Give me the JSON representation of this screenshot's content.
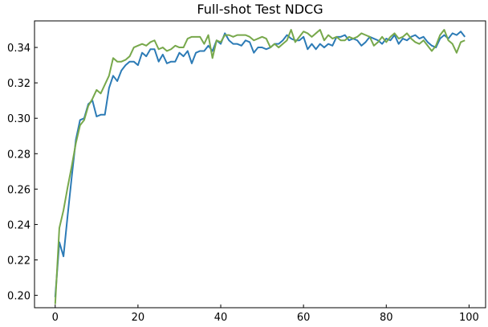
{
  "chart_data": {
    "type": "line",
    "title": "Full-shot Test NDCG",
    "xlabel": "",
    "ylabel": "",
    "xlim": [
      -5,
      104
    ],
    "ylim": [
      0.193,
      0.355
    ],
    "xticks": [
      0,
      20,
      40,
      60,
      80,
      100
    ],
    "yticks": [
      0.2,
      0.22,
      0.24,
      0.26,
      0.28,
      0.3,
      0.32,
      0.34
    ],
    "ytick_labels": [
      "0.20",
      "0.22",
      "0.24",
      "0.26",
      "0.28",
      "0.30",
      "0.32",
      "0.34"
    ],
    "grid": false,
    "x": [
      0,
      1,
      2,
      3,
      4,
      5,
      6,
      7,
      8,
      9,
      10,
      11,
      12,
      13,
      14,
      15,
      16,
      17,
      18,
      19,
      20,
      21,
      22,
      23,
      24,
      25,
      26,
      27,
      28,
      29,
      30,
      31,
      32,
      33,
      34,
      35,
      36,
      37,
      38,
      39,
      40,
      41,
      42,
      43,
      44,
      45,
      46,
      47,
      48,
      49,
      50,
      51,
      52,
      53,
      54,
      55,
      56,
      57,
      58,
      59,
      60,
      61,
      62,
      63,
      64,
      65,
      66,
      67,
      68,
      69,
      70,
      71,
      72,
      73,
      74,
      75,
      76,
      77,
      78,
      79,
      80,
      81,
      82,
      83,
      84,
      85,
      86,
      87,
      88,
      89,
      90,
      91,
      92,
      93,
      94,
      95,
      96,
      97,
      98,
      99
    ],
    "series": [
      {
        "color": "#2c7bb6",
        "values": [
          0.199,
          0.23,
          0.222,
          0.245,
          0.267,
          0.288,
          0.299,
          0.3,
          0.308,
          0.31,
          0.301,
          0.302,
          0.302,
          0.317,
          0.324,
          0.321,
          0.327,
          0.33,
          0.332,
          0.332,
          0.33,
          0.337,
          0.335,
          0.339,
          0.339,
          0.332,
          0.336,
          0.331,
          0.332,
          0.332,
          0.337,
          0.335,
          0.338,
          0.331,
          0.337,
          0.338,
          0.338,
          0.341,
          0.338,
          0.344,
          0.342,
          0.348,
          0.344,
          0.342,
          0.342,
          0.341,
          0.344,
          0.343,
          0.337,
          0.34,
          0.34,
          0.339,
          0.34,
          0.342,
          0.342,
          0.344,
          0.347,
          0.345,
          0.344,
          0.344,
          0.346,
          0.339,
          0.342,
          0.339,
          0.342,
          0.34,
          0.342,
          0.341,
          0.346,
          0.346,
          0.347,
          0.344,
          0.345,
          0.344,
          0.341,
          0.343,
          0.346,
          0.345,
          0.344,
          0.342,
          0.345,
          0.344,
          0.347,
          0.342,
          0.345,
          0.344,
          0.346,
          0.347,
          0.345,
          0.346,
          0.343,
          0.341,
          0.34,
          0.345,
          0.347,
          0.345,
          0.348,
          0.347,
          0.349,
          0.346
        ]
      },
      {
        "color": "#77a84b",
        "values": [
          0.195,
          0.238,
          0.248,
          0.261,
          0.273,
          0.286,
          0.296,
          0.299,
          0.307,
          0.311,
          0.316,
          0.314,
          0.319,
          0.324,
          0.334,
          0.332,
          0.332,
          0.333,
          0.335,
          0.34,
          0.341,
          0.342,
          0.341,
          0.343,
          0.344,
          0.339,
          0.34,
          0.338,
          0.339,
          0.341,
          0.34,
          0.34,
          0.345,
          0.346,
          0.346,
          0.346,
          0.342,
          0.347,
          0.334,
          0.344,
          0.343,
          0.347,
          0.347,
          0.346,
          0.347,
          0.347,
          0.347,
          0.346,
          0.344,
          0.345,
          0.346,
          0.345,
          0.34,
          0.342,
          0.34,
          0.342,
          0.344,
          0.35,
          0.343,
          0.346,
          0.349,
          0.348,
          0.346,
          0.348,
          0.35,
          0.344,
          0.347,
          0.345,
          0.346,
          0.344,
          0.344,
          0.346,
          0.345,
          0.346,
          0.348,
          0.347,
          0.346,
          0.341,
          0.343,
          0.346,
          0.343,
          0.346,
          0.348,
          0.345,
          0.346,
          0.348,
          0.345,
          0.343,
          0.342,
          0.344,
          0.341,
          0.338,
          0.341,
          0.347,
          0.35,
          0.344,
          0.342,
          0.337,
          0.343,
          0.344
        ]
      }
    ]
  }
}
